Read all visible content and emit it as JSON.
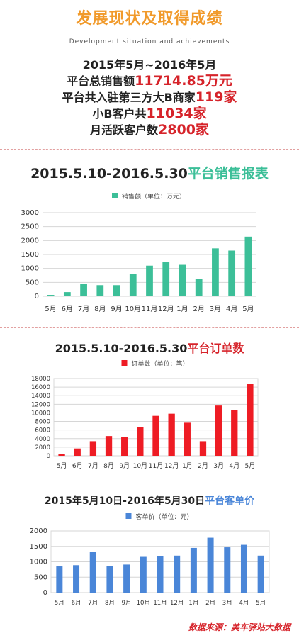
{
  "header": {
    "title": "发展现状及取得成绩",
    "subtitle": "Development situation and achievements"
  },
  "stats": {
    "period": "2015年5月~2016年5月",
    "gmv_prefix": "平台总销售额",
    "gmv_value": "11714.85万元",
    "merchants_prefix": "平台共入驻第三方大B商家",
    "merchants_value": "119家",
    "customers_prefix": "小B客户共",
    "customers_value": "11034家",
    "mau_prefix": "月活跃客户数",
    "mau_value": "2800家"
  },
  "charts": {
    "sales_title_date": "2015.5.10-2016.5.30",
    "sales_title_hl": "平台销售报表",
    "orders_title_date": "2015.5.10-2016.5.30",
    "orders_title_hl": "平台订单数",
    "price_title_date": "2015年5月10日-2016年5月30日",
    "price_title_hl": "平台客单价"
  },
  "colors": {
    "sales": "#3cbf98",
    "orders": "#ee1c24",
    "price": "#4a86d8",
    "highlight_red": "#d6232a",
    "header_orange": "#f19a2b"
  },
  "footer": {
    "source": "数据来源：美车驿站大数据"
  },
  "chart_data": [
    {
      "type": "bar",
      "title": "2015.5.10-2016.5.30平台销售报表",
      "legend_position": "top",
      "grid": true,
      "categories": [
        "5月",
        "6月",
        "7月",
        "8月",
        "9月",
        "10月",
        "11月",
        "12月",
        "1月",
        "2月",
        "3月",
        "4月",
        "5月"
      ],
      "series": [
        {
          "name": "销售额（单位：万元）",
          "values": [
            50,
            150,
            440,
            400,
            400,
            790,
            1100,
            1220,
            1130,
            610,
            1720,
            1640,
            2140
          ]
        }
      ],
      "ylim": [
        0,
        3000
      ],
      "yticks": [
        0,
        500,
        1000,
        1500,
        2000,
        2500,
        3000
      ]
    },
    {
      "type": "bar",
      "title": "2015.5.10-2016.5.30平台订单数",
      "legend_position": "top",
      "grid": true,
      "categories": [
        "5月",
        "6月",
        "7月",
        "8月",
        "9月",
        "10月",
        "11月",
        "12月",
        "1月",
        "2月",
        "3月",
        "4月",
        "5月"
      ],
      "series": [
        {
          "name": "订单数（单位：笔）",
          "values": [
            400,
            1700,
            3400,
            4600,
            4400,
            6700,
            9300,
            9800,
            7700,
            3400,
            11700,
            10600,
            16800
          ]
        }
      ],
      "ylim": [
        0,
        18000
      ],
      "yticks": [
        0,
        2000,
        4000,
        6000,
        8000,
        10000,
        12000,
        14000,
        16000,
        18000
      ]
    },
    {
      "type": "bar",
      "title": "2015年5月10日-2016年5月30日平台客单价",
      "legend_position": "top",
      "grid": true,
      "categories": [
        "5月",
        "6月",
        "7月",
        "8月",
        "9月",
        "10月",
        "11月",
        "12月",
        "1月",
        "2月",
        "3月",
        "4月",
        "5月"
      ],
      "series": [
        {
          "name": "客单价（单位：元）",
          "values": [
            850,
            890,
            1320,
            870,
            910,
            1160,
            1190,
            1200,
            1450,
            1780,
            1470,
            1550,
            1200
          ]
        }
      ],
      "ylim": [
        0,
        2000
      ],
      "yticks": [
        0,
        500,
        1000,
        1500,
        2000
      ]
    }
  ]
}
